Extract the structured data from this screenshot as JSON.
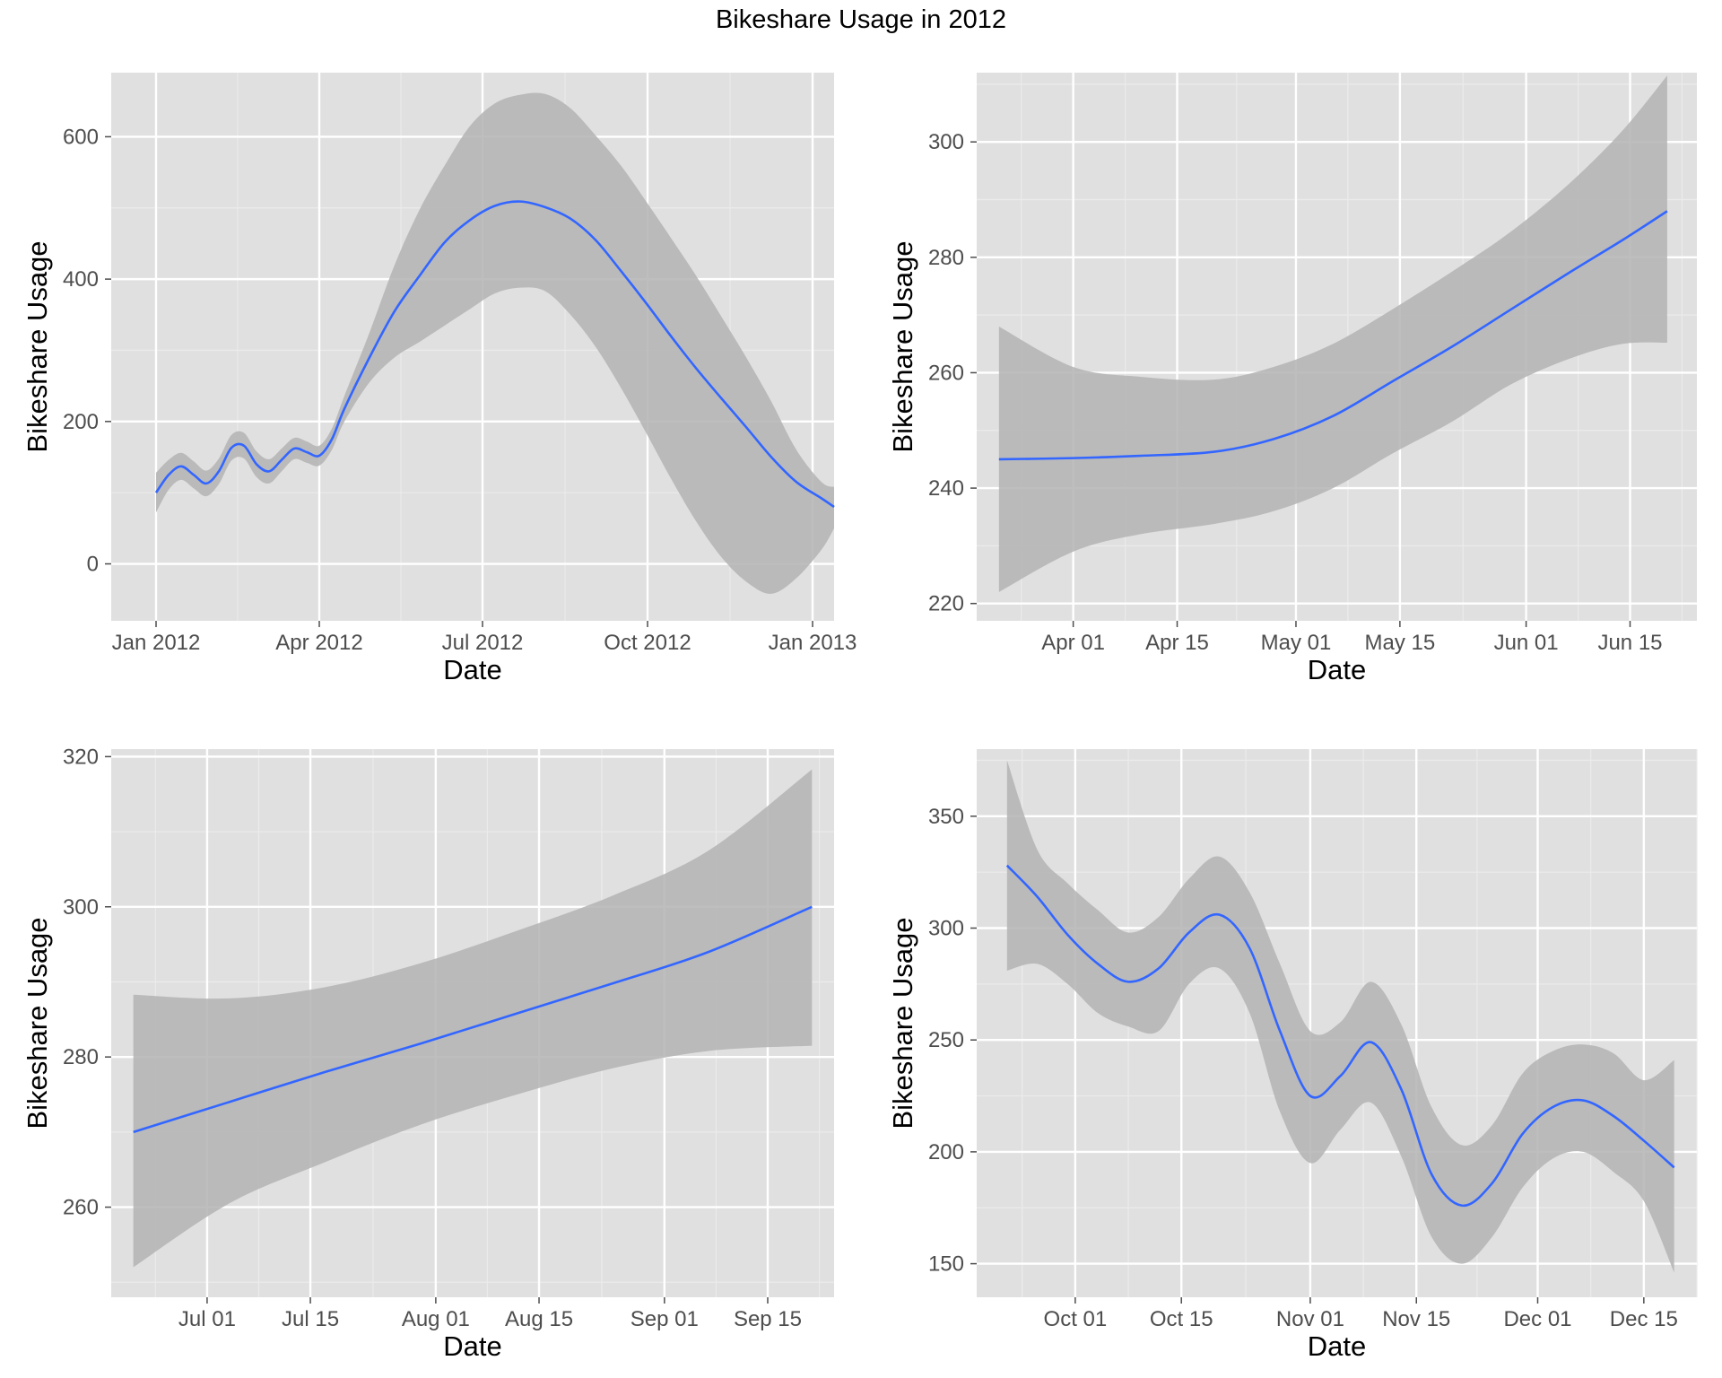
{
  "title": "Bikeshare Usage in 2012",
  "colors": {
    "panel_bg": "#E0E0E0",
    "grid_major": "#FFFFFF",
    "grid_minor": "#EBEBEB",
    "line": "#3366FF",
    "ribbon": "#B3B3B3",
    "tick_text": "#4D4D4D"
  },
  "chart_data": [
    {
      "type": "line",
      "xlabel": "Date",
      "ylabel": "Bikeshare Usage",
      "x_type": "date",
      "xlim": [
        "2011-12-07",
        "2013-01-13"
      ],
      "ylim": [
        -80,
        690
      ],
      "xticks": [
        {
          "label": "Jan 2012",
          "date": "2012-01-01"
        },
        {
          "label": "Apr 2012",
          "date": "2012-04-01"
        },
        {
          "label": "Jul 2012",
          "date": "2012-07-01"
        },
        {
          "label": "Oct 2012",
          "date": "2012-10-01"
        },
        {
          "label": "Jan 2013",
          "date": "2013-01-01"
        }
      ],
      "yticks": [
        0,
        200,
        400,
        600
      ],
      "grid": true,
      "smooth_ribbon": true,
      "points": [
        {
          "x": "2012-01-01",
          "y": 100,
          "lo": 72,
          "hi": 128
        },
        {
          "x": "2012-01-08",
          "y": 125,
          "lo": 104,
          "hi": 146
        },
        {
          "x": "2012-01-15",
          "y": 137,
          "lo": 118,
          "hi": 156
        },
        {
          "x": "2012-01-22",
          "y": 125,
          "lo": 106,
          "hi": 144
        },
        {
          "x": "2012-01-29",
          "y": 113,
          "lo": 95,
          "hi": 131
        },
        {
          "x": "2012-02-05",
          "y": 130,
          "lo": 112,
          "hi": 148
        },
        {
          "x": "2012-02-12",
          "y": 163,
          "lo": 145,
          "hi": 181
        },
        {
          "x": "2012-02-19",
          "y": 166,
          "lo": 148,
          "hi": 184
        },
        {
          "x": "2012-02-26",
          "y": 140,
          "lo": 122,
          "hi": 158
        },
        {
          "x": "2012-03-04",
          "y": 130,
          "lo": 113,
          "hi": 147
        },
        {
          "x": "2012-03-11",
          "y": 146,
          "lo": 130,
          "hi": 162
        },
        {
          "x": "2012-03-18",
          "y": 162,
          "lo": 147,
          "hi": 177
        },
        {
          "x": "2012-03-25",
          "y": 157,
          "lo": 142,
          "hi": 172
        },
        {
          "x": "2012-04-01",
          "y": 152,
          "lo": 138,
          "hi": 166
        },
        {
          "x": "2012-04-08",
          "y": 175,
          "lo": 160,
          "hi": 190
        },
        {
          "x": "2012-04-15",
          "y": 218,
          "lo": 200,
          "hi": 236
        },
        {
          "x": "2012-04-29",
          "y": 290,
          "lo": 255,
          "hi": 325
        },
        {
          "x": "2012-05-13",
          "y": 355,
          "lo": 290,
          "hi": 420
        },
        {
          "x": "2012-05-27",
          "y": 405,
          "lo": 312,
          "hi": 498
        },
        {
          "x": "2012-06-10",
          "y": 452,
          "lo": 335,
          "hi": 560
        },
        {
          "x": "2012-06-24",
          "y": 483,
          "lo": 358,
          "hi": 615
        },
        {
          "x": "2012-07-08",
          "y": 503,
          "lo": 380,
          "hi": 647
        },
        {
          "x": "2012-07-22",
          "y": 509,
          "lo": 388,
          "hi": 659
        },
        {
          "x": "2012-08-05",
          "y": 501,
          "lo": 383,
          "hi": 660
        },
        {
          "x": "2012-08-19",
          "y": 485,
          "lo": 350,
          "hi": 640
        },
        {
          "x": "2012-09-02",
          "y": 455,
          "lo": 305,
          "hi": 602
        },
        {
          "x": "2012-09-16",
          "y": 412,
          "lo": 248,
          "hi": 560
        },
        {
          "x": "2012-09-30",
          "y": 367,
          "lo": 185,
          "hi": 510
        },
        {
          "x": "2012-10-14",
          "y": 320,
          "lo": 120,
          "hi": 458
        },
        {
          "x": "2012-10-28",
          "y": 275,
          "lo": 60,
          "hi": 405
        },
        {
          "x": "2012-11-11",
          "y": 233,
          "lo": 10,
          "hi": 348
        },
        {
          "x": "2012-11-25",
          "y": 192,
          "lo": -25,
          "hi": 290
        },
        {
          "x": "2012-12-09",
          "y": 150,
          "lo": -42,
          "hi": 228
        },
        {
          "x": "2012-12-23",
          "y": 115,
          "lo": -20,
          "hi": 160
        },
        {
          "x": "2013-01-06",
          "y": 92,
          "lo": 20,
          "hi": 115
        },
        {
          "x": "2013-01-13",
          "y": 80,
          "lo": 50,
          "hi": 108
        }
      ]
    },
    {
      "type": "line",
      "xlabel": "Date",
      "ylabel": "Bikeshare Usage",
      "x_type": "date",
      "xlim": [
        "2012-03-19",
        "2012-06-24"
      ],
      "ylim": [
        217,
        312
      ],
      "xticks": [
        {
          "label": "Apr 01",
          "date": "2012-04-01"
        },
        {
          "label": "Apr 15",
          "date": "2012-04-15"
        },
        {
          "label": "May 01",
          "date": "2012-05-01"
        },
        {
          "label": "May 15",
          "date": "2012-05-15"
        },
        {
          "label": "Jun 01",
          "date": "2012-06-01"
        },
        {
          "label": "Jun 15",
          "date": "2012-06-15"
        }
      ],
      "yticks": [
        220,
        240,
        260,
        280,
        300
      ],
      "grid": true,
      "smooth_ribbon": true,
      "points": [
        {
          "x": "2012-03-22",
          "y": 245,
          "lo": 222,
          "hi": 268
        },
        {
          "x": "2012-04-01",
          "y": 245.2,
          "lo": 229,
          "hi": 261
        },
        {
          "x": "2012-04-10",
          "y": 245.6,
          "lo": 232,
          "hi": 259.3
        },
        {
          "x": "2012-04-20",
          "y": 246.3,
          "lo": 233.8,
          "hi": 258.8
        },
        {
          "x": "2012-04-28",
          "y": 248.5,
          "lo": 236,
          "hi": 261
        },
        {
          "x": "2012-05-06",
          "y": 252.5,
          "lo": 240,
          "hi": 265
        },
        {
          "x": "2012-05-14",
          "y": 258.5,
          "lo": 246,
          "hi": 271
        },
        {
          "x": "2012-05-22",
          "y": 264.5,
          "lo": 251.5,
          "hi": 277.5
        },
        {
          "x": "2012-05-30",
          "y": 271,
          "lo": 258,
          "hi": 284.5
        },
        {
          "x": "2012-06-07",
          "y": 277.5,
          "lo": 262.5,
          "hi": 293
        },
        {
          "x": "2012-06-14",
          "y": 283,
          "lo": 265,
          "hi": 302
        },
        {
          "x": "2012-06-20",
          "y": 288,
          "lo": 265.2,
          "hi": 311.5
        }
      ]
    },
    {
      "type": "line",
      "xlabel": "Date",
      "ylabel": "Bikeshare Usage",
      "x_type": "date",
      "xlim": [
        "2012-06-18",
        "2012-09-24"
      ],
      "ylim": [
        248,
        321
      ],
      "xticks": [
        {
          "label": "Jul 01",
          "date": "2012-07-01"
        },
        {
          "label": "Jul 15",
          "date": "2012-07-15"
        },
        {
          "label": "Aug 01",
          "date": "2012-08-01"
        },
        {
          "label": "Aug 15",
          "date": "2012-08-15"
        },
        {
          "label": "Sep 01",
          "date": "2012-09-01"
        },
        {
          "label": "Sep 15",
          "date": "2012-09-15"
        }
      ],
      "yticks": [
        260,
        280,
        300,
        320
      ],
      "grid": true,
      "smooth_ribbon": true,
      "points": [
        {
          "x": "2012-06-21",
          "y": 270,
          "lo": 252,
          "hi": 288.3
        },
        {
          "x": "2012-07-04",
          "y": 274,
          "lo": 260.5,
          "hi": 287.8
        },
        {
          "x": "2012-07-17",
          "y": 278,
          "lo": 266,
          "hi": 289.3
        },
        {
          "x": "2012-07-30",
          "y": 281.8,
          "lo": 271,
          "hi": 292.5
        },
        {
          "x": "2012-08-12",
          "y": 285.8,
          "lo": 275,
          "hi": 296.8
        },
        {
          "x": "2012-08-25",
          "y": 289.8,
          "lo": 278.5,
          "hi": 301.5
        },
        {
          "x": "2012-09-07",
          "y": 294,
          "lo": 280.8,
          "hi": 307.5
        },
        {
          "x": "2012-09-21",
          "y": 300,
          "lo": 281.5,
          "hi": 318.3
        }
      ]
    },
    {
      "type": "line",
      "xlabel": "Date",
      "ylabel": "Bikeshare Usage",
      "x_type": "date",
      "xlim": [
        "2012-09-18",
        "2012-12-22"
      ],
      "ylim": [
        135,
        380
      ],
      "xticks": [
        {
          "label": "Oct 01",
          "date": "2012-10-01"
        },
        {
          "label": "Oct 15",
          "date": "2012-10-15"
        },
        {
          "label": "Nov 01",
          "date": "2012-11-01"
        },
        {
          "label": "Nov 15",
          "date": "2012-11-15"
        },
        {
          "label": "Dec 01",
          "date": "2012-12-01"
        },
        {
          "label": "Dec 15",
          "date": "2012-12-15"
        }
      ],
      "yticks": [
        150,
        200,
        250,
        300,
        350
      ],
      "grid": true,
      "smooth_ribbon": true,
      "points": [
        {
          "x": "2012-09-22",
          "y": 328,
          "lo": 281,
          "hi": 375
        },
        {
          "x": "2012-09-26",
          "y": 314,
          "lo": 284,
          "hi": 335
        },
        {
          "x": "2012-09-30",
          "y": 297,
          "lo": 275,
          "hi": 320
        },
        {
          "x": "2012-10-04",
          "y": 284,
          "lo": 262,
          "hi": 308
        },
        {
          "x": "2012-10-08",
          "y": 276,
          "lo": 256,
          "hi": 298
        },
        {
          "x": "2012-10-12",
          "y": 282,
          "lo": 254,
          "hi": 305
        },
        {
          "x": "2012-10-16",
          "y": 298,
          "lo": 275,
          "hi": 322
        },
        {
          "x": "2012-10-20",
          "y": 306,
          "lo": 282,
          "hi": 332
        },
        {
          "x": "2012-10-24",
          "y": 291,
          "lo": 262,
          "hi": 316
        },
        {
          "x": "2012-10-28",
          "y": 254,
          "lo": 218,
          "hi": 284
        },
        {
          "x": "2012-11-01",
          "y": 225,
          "lo": 195,
          "hi": 254
        },
        {
          "x": "2012-11-05",
          "y": 234,
          "lo": 210,
          "hi": 258
        },
        {
          "x": "2012-11-09",
          "y": 249,
          "lo": 222,
          "hi": 276
        },
        {
          "x": "2012-11-13",
          "y": 228,
          "lo": 198,
          "hi": 257
        },
        {
          "x": "2012-11-17",
          "y": 190,
          "lo": 162,
          "hi": 220
        },
        {
          "x": "2012-11-21",
          "y": 176,
          "lo": 150,
          "hi": 203
        },
        {
          "x": "2012-11-25",
          "y": 186,
          "lo": 162,
          "hi": 212
        },
        {
          "x": "2012-11-29",
          "y": 208,
          "lo": 184,
          "hi": 235
        },
        {
          "x": "2012-12-03",
          "y": 220,
          "lo": 197,
          "hi": 245
        },
        {
          "x": "2012-12-07",
          "y": 223,
          "lo": 200,
          "hi": 248
        },
        {
          "x": "2012-12-11",
          "y": 216,
          "lo": 191,
          "hi": 244
        },
        {
          "x": "2012-12-15",
          "y": 205,
          "lo": 178,
          "hi": 232
        },
        {
          "x": "2012-12-19",
          "y": 193,
          "lo": 146,
          "hi": 241
        }
      ]
    }
  ]
}
